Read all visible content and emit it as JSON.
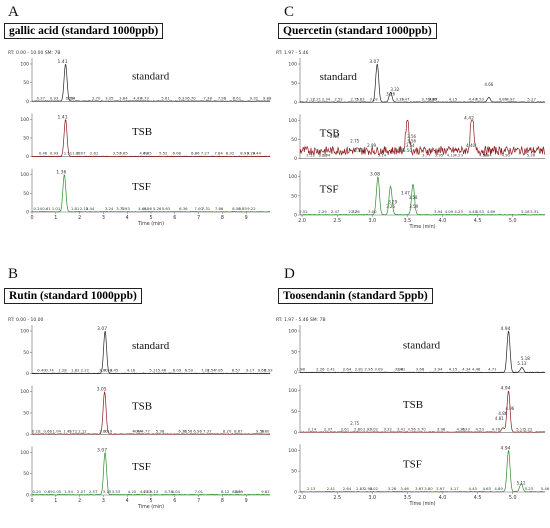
{
  "panels": [
    {
      "letter": "A",
      "title": "gallic acid    (standard 1000ppb)",
      "rt_label": "RT: 0.00 - 10.00  SM: 7B",
      "xlabel": "Time (min)",
      "x_ticks": [
        "0",
        "1",
        "2",
        "3",
        "4",
        "5",
        "6",
        "7",
        "8",
        "9"
      ],
      "y_ticks": [
        "0",
        "50",
        "100"
      ],
      "traces": [
        {
          "label": "standard",
          "color": "#222222",
          "peak_label": "1.41",
          "tick_labels": [
            "0.37",
            "0.93",
            "1.59",
            "1.64",
            "2.70",
            "3.25",
            "3.84",
            "4.43",
            "4.73",
            "5.61",
            "6.33",
            "6.70",
            "7.38",
            "7.98",
            "8.61",
            "9.32",
            "9.88"
          ]
        },
        {
          "label": "TSB",
          "color": "#8b1a1a",
          "peak_label": "1.41",
          "tick_labels": [
            "0.46",
            "0.93",
            "1.51",
            "1.87",
            "2.07",
            "2.61",
            "3.57",
            "3.85",
            "4.69",
            "4.85",
            "5.52",
            "6.08",
            "6.86",
            "7.27",
            "7.84",
            "8.32",
            "8.93",
            "9.20",
            "9.44"
          ]
        },
        {
          "label": "TSF",
          "color": "#2e8b2e",
          "peak_label": "1.36",
          "tick_labels": [
            "0.24",
            "0.61",
            "1.01",
            "1.81",
            "2.19",
            "2.44",
            "3.24",
            "3.72",
            "3.93",
            "4.64",
            "4.86",
            "5.26",
            "5.63",
            "6.36",
            "7.00",
            "7.31",
            "7.86",
            "8.59",
            "8.85",
            "9.22"
          ]
        }
      ]
    },
    {
      "letter": "C",
      "title": "Quercetin    (standard 1000ppb)",
      "rt_label": "RT: 1.97 - 5.46",
      "xlabel": "Time (min)",
      "x_ticks": [
        "2.0",
        "2.5",
        "3.0",
        "3.5",
        "4.0",
        "4.5",
        "5.0"
      ],
      "y_ticks": [
        "0",
        "50",
        "100"
      ],
      "traces": [
        {
          "label": "standard",
          "color": "#222222",
          "peak_label": "3.07",
          "extra_labels": [
            "3.26",
            "3.32",
            "4.66"
          ],
          "tick_labels": [
            "2.12",
            "2.21",
            "2.34",
            "2.52",
            "2.75",
            "2.83",
            "3.02",
            "3.39",
            "3.47",
            "3.87",
            "3.76",
            "3.86",
            "4.15",
            "4.43",
            "4.53",
            "4.86",
            "4.97",
            "5.27"
          ]
        },
        {
          "label": "TSB",
          "color": "#8b1a1a",
          "peak_label": "4.42",
          "extra_labels": [
            "2.81",
            "2.99",
            "2.75",
            "2.46",
            "3.50",
            "3.54",
            "3.56",
            "3.56",
            "3.39",
            "4.40"
          ],
          "tick_labels": [
            "2.12",
            "2.30",
            "2.34",
            "3.14",
            "3.77",
            "3.95",
            "4.12",
            "4.23",
            "4.58",
            "4.64",
            "4.90",
            "5.26"
          ]
        },
        {
          "label": "TSF",
          "color": "#2e8b2e",
          "peak_label": "3.08",
          "extra_labels": [
            "3.26",
            "3.29",
            "3.58",
            "3.47",
            "3.59"
          ],
          "tick_labels": [
            "2.02",
            "2.29",
            "2.47",
            "2.72",
            "2.76",
            "3.00",
            "3.94",
            "4.09",
            "4.23",
            "4.43",
            "4.53",
            "4.69",
            "5.18",
            "5.31"
          ]
        }
      ]
    },
    {
      "letter": "B",
      "title": "Rutin    (standard 1000ppb)",
      "rt_label": "RT: 0.00 - 10.00",
      "xlabel": "Time (min)",
      "x_ticks": [
        "0",
        "1",
        "2",
        "3",
        "4",
        "5",
        "6",
        "7",
        "8",
        "9"
      ],
      "y_ticks": [
        "0",
        "50",
        "100"
      ],
      "traces": [
        {
          "label": "standard",
          "color": "#222222",
          "peak_label": "3.07",
          "tick_labels": [
            "0.40",
            "0.74",
            "1.28",
            "1.82",
            "2.22",
            "3.00",
            "3.18",
            "3.45",
            "4.16",
            "5.11",
            "5.46",
            "6.09",
            "6.59",
            "7.28",
            "7.54",
            "7.85",
            "8.57",
            "9.17",
            "9.66",
            "9.93"
          ]
        },
        {
          "label": "TSB",
          "color": "#8b1a1a",
          "peak_label": "3.05",
          "tick_labels": [
            "0.18",
            "0.66",
            "1.04",
            "1.49",
            "1.72",
            "2.12",
            "3.00",
            "3.19",
            "4.39",
            "4.44",
            "4.77",
            "5.38",
            "6.33",
            "6.56",
            "6.96",
            "7.37",
            "8.20",
            "8.67",
            "9.59",
            "9.80"
          ]
        },
        {
          "label": "TSF",
          "color": "#2e8b2e",
          "peak_label": "3.07",
          "tick_labels": [
            "0.20",
            "0.69",
            "1.05",
            "1.54",
            "2.07",
            "2.57",
            "3.15",
            "3.53",
            "4.20",
            "4.71",
            "4.83",
            "5.13",
            "5.74",
            "6.04",
            "7.01",
            "8.12",
            "8.59",
            "8.69",
            "9.81"
          ]
        }
      ]
    },
    {
      "letter": "D",
      "title": "Toosendanin    (standard 5ppb)",
      "rt_label": "RT: 1.97 - 5.46  SM: 7B",
      "xlabel": "Time (min)",
      "x_ticks": [
        "2.0",
        "2.5",
        "3.0",
        "3.5",
        "4.0",
        "4.5",
        "5.0"
      ],
      "y_ticks": [
        "0",
        "50",
        "100"
      ],
      "traces": [
        {
          "label": "standard",
          "color": "#222222",
          "peak_label": "4.94",
          "extra_labels": [
            "5.13",
            "5.18"
          ],
          "tick_labels": [
            "1.98",
            "2.26",
            "2.41",
            "2.64",
            "2.81",
            "2.95",
            "3.09",
            "3.38",
            "3.41",
            "3.68",
            "3.94",
            "4.15",
            "4.34",
            "4.48",
            "4.71"
          ]
        },
        {
          "label": "TSB",
          "color": "#8b1a1a",
          "peak_label": "4.94",
          "extra_labels": [
            "2.75",
            "4.81",
            "4.86",
            "4.96"
          ],
          "tick_labels": [
            "2.14",
            "2.37",
            "2.61",
            "2.80",
            "2.93",
            "3.02",
            "3.22",
            "3.41",
            "3.56",
            "3.70",
            "3.98",
            "4.26",
            "4.33",
            "4.53",
            "4.76",
            "5.11",
            "5.22"
          ]
        },
        {
          "label": "TSF",
          "color": "#2e8b2e",
          "peak_label": "4.94",
          "extra_labels": [
            "5.12"
          ],
          "tick_labels": [
            "2.13",
            "2.41",
            "2.64",
            "2.83",
            "2.94",
            "3.02",
            "3.28",
            "3.46",
            "3.67",
            "3.80",
            "3.97",
            "4.17",
            "4.43",
            "4.63",
            "4.80",
            "5.23",
            "5.46"
          ]
        }
      ]
    }
  ],
  "chart_data": [
    {
      "type": "line",
      "title": "gallic acid (standard 1000ppb)",
      "xlabel": "Time (min)",
      "xlim": [
        0,
        10
      ],
      "ylim": [
        0,
        100
      ],
      "series": [
        {
          "name": "standard",
          "peaks": [
            {
              "x": 1.41,
              "y": 100
            }
          ]
        },
        {
          "name": "TSB",
          "peaks": [
            {
              "x": 1.41,
              "y": 100
            }
          ]
        },
        {
          "name": "TSF",
          "peaks": [
            {
              "x": 1.36,
              "y": 100
            }
          ]
        }
      ]
    },
    {
      "type": "line",
      "title": "Quercetin (standard 1000ppb)",
      "xlabel": "Time (min)",
      "xlim": [
        1.97,
        5.46
      ],
      "ylim": [
        0,
        100
      ],
      "series": [
        {
          "name": "standard",
          "peaks": [
            {
              "x": 3.07,
              "y": 100
            },
            {
              "x": 3.26,
              "y": 25
            },
            {
              "x": 4.66,
              "y": 12
            }
          ]
        },
        {
          "name": "TSB",
          "peaks": [
            {
              "x": 3.5,
              "y": 95
            },
            {
              "x": 4.42,
              "y": 100
            }
          ]
        },
        {
          "name": "TSF",
          "peaks": [
            {
              "x": 3.08,
              "y": 100
            },
            {
              "x": 3.26,
              "y": 75
            },
            {
              "x": 3.58,
              "y": 80
            }
          ]
        }
      ]
    },
    {
      "type": "line",
      "title": "Rutin (standard 1000ppb)",
      "xlabel": "Time (min)",
      "xlim": [
        0,
        10
      ],
      "ylim": [
        0,
        100
      ],
      "series": [
        {
          "name": "standard",
          "peaks": [
            {
              "x": 3.07,
              "y": 100
            }
          ]
        },
        {
          "name": "TSB",
          "peaks": [
            {
              "x": 3.05,
              "y": 100
            }
          ]
        },
        {
          "name": "TSF",
          "peaks": [
            {
              "x": 3.07,
              "y": 100
            }
          ]
        }
      ]
    },
    {
      "type": "line",
      "title": "Toosendanin (standard 5ppb)",
      "xlabel": "Time (min)",
      "xlim": [
        1.97,
        5.46
      ],
      "ylim": [
        0,
        100
      ],
      "series": [
        {
          "name": "standard",
          "peaks": [
            {
              "x": 4.94,
              "y": 100
            },
            {
              "x": 5.13,
              "y": 12
            }
          ]
        },
        {
          "name": "TSB",
          "peaks": [
            {
              "x": 4.94,
              "y": 100
            },
            {
              "x": 4.86,
              "y": 10
            }
          ]
        },
        {
          "name": "TSF",
          "peaks": [
            {
              "x": 4.94,
              "y": 100
            },
            {
              "x": 5.12,
              "y": 20
            }
          ]
        }
      ]
    }
  ]
}
